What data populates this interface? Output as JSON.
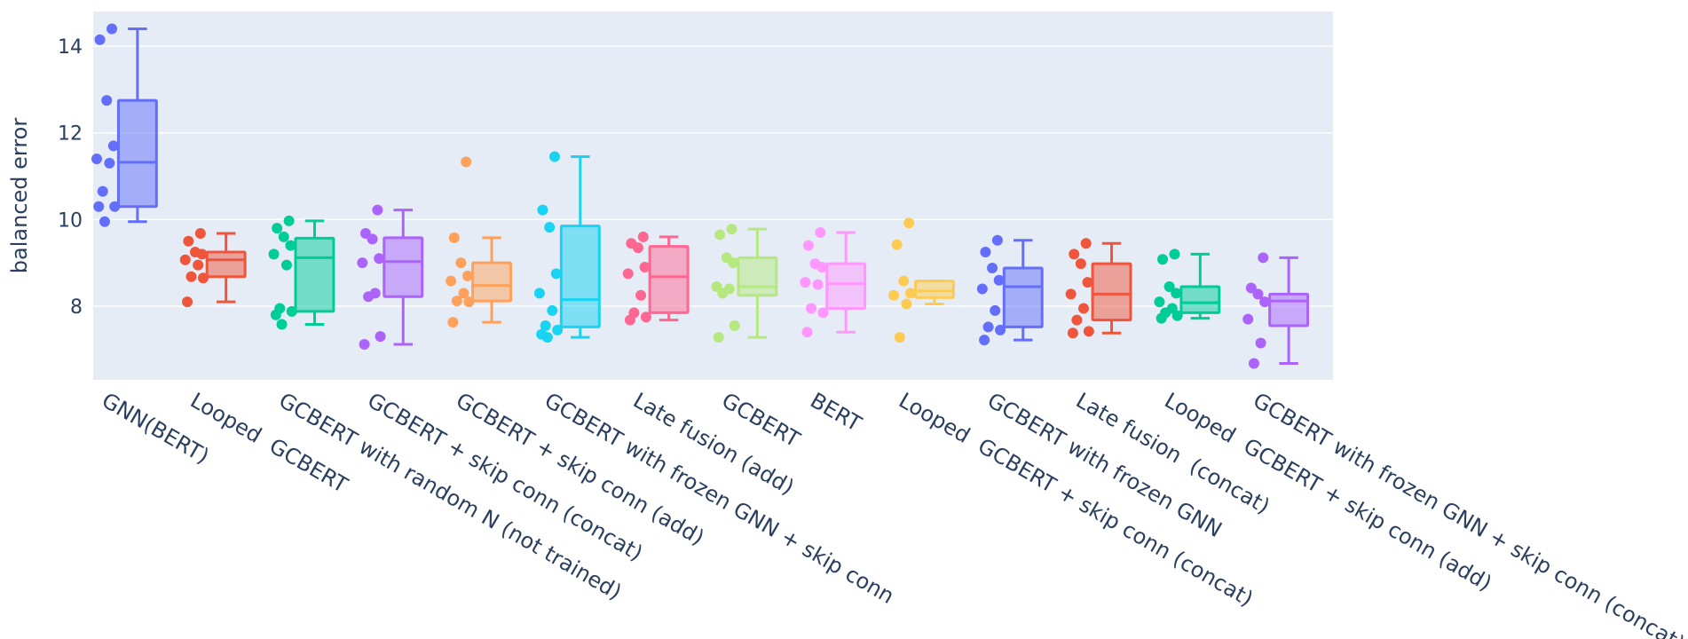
{
  "chart_data": {
    "type": "box",
    "ylabel": "balanced error",
    "yticks": [
      8,
      10,
      12,
      14
    ],
    "ylim": [
      6.3,
      14.8
    ],
    "grid": true,
    "points_shown": "all",
    "colors": {
      "plot_bg": "#e5ecf6",
      "grid": "#ffffff",
      "text": "#2a3f5f"
    },
    "series": [
      {
        "name": "GNN(BERT)",
        "color": "#636efa",
        "stats": {
          "min": 9.95,
          "q1": 10.3,
          "median": 11.32,
          "q3": 12.75,
          "max": 14.4
        },
        "points": [
          14.4,
          14.15,
          12.75,
          11.7,
          11.4,
          11.3,
          10.65,
          10.3,
          10.3,
          9.95
        ]
      },
      {
        "name": "Looped  GCBERT",
        "color": "#ef553b",
        "stats": {
          "min": 8.1,
          "q1": 8.68,
          "median": 9.07,
          "q3": 9.25,
          "max": 9.68
        },
        "points": [
          9.68,
          9.5,
          9.25,
          9.2,
          9.07,
          8.95,
          8.68,
          8.65,
          8.1
        ]
      },
      {
        "name": "GCBERT with random N (not trained)",
        "color": "#00cc96",
        "stats": {
          "min": 7.58,
          "q1": 7.88,
          "median": 9.12,
          "q3": 9.57,
          "max": 9.97
        },
        "points": [
          9.97,
          9.8,
          9.6,
          9.4,
          9.2,
          8.95,
          7.95,
          7.88,
          7.8,
          7.58
        ]
      },
      {
        "name": "GCBERT + skip conn (concat)",
        "color": "#ab63fa",
        "stats": {
          "min": 7.12,
          "q1": 8.22,
          "median": 9.03,
          "q3": 9.58,
          "max": 10.22
        },
        "points": [
          10.22,
          9.68,
          9.55,
          9.1,
          9.0,
          8.3,
          8.22,
          7.3,
          7.12
        ]
      },
      {
        "name": "GCBERT + skip conn (add)",
        "color": "#ffa15a",
        "stats": {
          "min": 7.63,
          "q1": 8.12,
          "median": 8.48,
          "q3": 9.0,
          "max": 9.58
        },
        "points": [
          11.33,
          9.58,
          9.0,
          8.7,
          8.58,
          8.3,
          8.12,
          8.1,
          7.63
        ]
      },
      {
        "name": "GCBERT with frozen GNN + skip conn",
        "color": "#19d3f3",
        "stats": {
          "min": 7.28,
          "q1": 7.52,
          "median": 8.15,
          "q3": 9.85,
          "max": 11.45
        },
        "points": [
          11.45,
          10.22,
          9.82,
          8.75,
          8.3,
          7.9,
          7.55,
          7.45,
          7.35,
          7.28
        ]
      },
      {
        "name": "Late fusion (add)",
        "color": "#ff6692",
        "stats": {
          "min": 7.68,
          "q1": 7.85,
          "median": 8.68,
          "q3": 9.38,
          "max": 9.6
        },
        "points": [
          9.6,
          9.45,
          9.35,
          8.9,
          8.75,
          8.25,
          7.85,
          7.75,
          7.68
        ]
      },
      {
        "name": "GCBERT",
        "color": "#b6e880",
        "stats": {
          "min": 7.28,
          "q1": 8.25,
          "median": 8.45,
          "q3": 9.12,
          "max": 9.78
        },
        "points": [
          9.78,
          9.65,
          9.12,
          9.0,
          8.45,
          8.4,
          8.3,
          7.55,
          7.28
        ]
      },
      {
        "name": "BERT",
        "color": "#ff97ff",
        "stats": {
          "min": 7.4,
          "q1": 7.95,
          "median": 8.52,
          "q3": 8.98,
          "max": 9.7
        },
        "points": [
          9.7,
          9.4,
          8.98,
          8.9,
          8.55,
          8.5,
          7.95,
          7.85,
          7.4
        ]
      },
      {
        "name": "Looped  GCBERT + skip conn (concat)",
        "color": "#fecb52",
        "stats": {
          "min": 8.05,
          "q1": 8.2,
          "median": 8.35,
          "q3": 8.58,
          "max": 8.58
        },
        "points": [
          9.92,
          9.42,
          8.58,
          8.3,
          8.25,
          8.05,
          7.28
        ]
      },
      {
        "name": "GCBERT with frozen GNN",
        "color": "#636efa",
        "stats": {
          "min": 7.22,
          "q1": 7.52,
          "median": 8.45,
          "q3": 8.88,
          "max": 9.52
        },
        "points": [
          9.52,
          9.25,
          8.88,
          8.6,
          8.4,
          7.9,
          7.52,
          7.45,
          7.22
        ]
      },
      {
        "name": "Late fusion  (concat)",
        "color": "#ef553b",
        "stats": {
          "min": 7.38,
          "q1": 7.68,
          "median": 8.28,
          "q3": 8.98,
          "max": 9.45
        },
        "points": [
          9.45,
          9.2,
          8.98,
          8.55,
          8.28,
          7.95,
          7.68,
          7.42,
          7.38
        ]
      },
      {
        "name": "Looped  GCBERT + skip conn (add)",
        "color": "#00cc96",
        "stats": {
          "min": 7.72,
          "q1": 7.85,
          "median": 8.08,
          "q3": 8.45,
          "max": 9.2
        },
        "points": [
          9.2,
          9.08,
          8.45,
          8.3,
          8.1,
          7.95,
          7.85,
          7.78,
          7.72
        ]
      },
      {
        "name": "GCBERT with frozen GNN + skip conn (concat)",
        "color": "#ab63fa",
        "stats": {
          "min": 6.68,
          "q1": 7.55,
          "median": 8.12,
          "q3": 8.28,
          "max": 9.12
        },
        "points": [
          9.12,
          8.42,
          8.28,
          8.1,
          7.7,
          7.15,
          6.68
        ]
      }
    ]
  }
}
